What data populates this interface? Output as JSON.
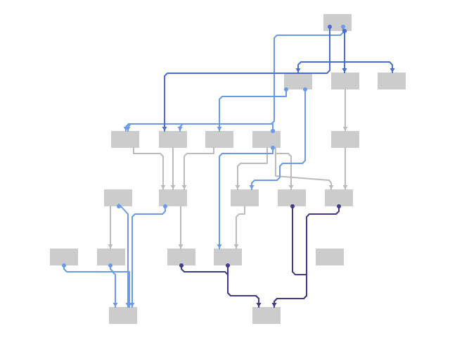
{
  "diagram": {
    "node_color": "#cccccc",
    "edge_colors": {
      "gray": "#bbbbbb",
      "blue": "#4a6fd4",
      "light_blue": "#6a9ae8",
      "dark_purple": "#3f3a8a"
    },
    "nodes": [
      "n_root",
      "n_a",
      "n_b",
      "n_c",
      "n_d",
      "n_e",
      "n_f",
      "n_g",
      "n_h",
      "n_i",
      "n_j",
      "n_k",
      "n_l",
      "n_m",
      "n_n",
      "n_o",
      "n_p",
      "n_q",
      "n_r",
      "n_s",
      "n_t"
    ],
    "edges": [
      {
        "from": "n_root",
        "to": "n_e",
        "color": "blue"
      },
      {
        "from": "n_root",
        "to": "n_a",
        "color": "blue"
      },
      {
        "from": "n_root",
        "to": "n_b",
        "color": "blue"
      },
      {
        "from": "n_root",
        "to": "n_c",
        "color": "blue"
      },
      {
        "from": "n_a",
        "to": "n_d",
        "color": "light_blue"
      },
      {
        "from": "n_a",
        "to": "n_m",
        "color": "light_blue"
      },
      {
        "from": "n_b",
        "to": "n_h",
        "color": "gray"
      },
      {
        "from": "n_d",
        "to": "n_i",
        "color": "light_blue"
      },
      {
        "from": "n_f",
        "to": "n_e",
        "color": "light_blue"
      },
      {
        "from": "n_d",
        "to": "n_f",
        "color": "light_blue"
      },
      {
        "from": "n_d",
        "to": "n_g",
        "color": "light_blue"
      },
      {
        "from": "n_d",
        "to": "n_l",
        "color": "gray"
      },
      {
        "from": "n_d",
        "to": "n_p",
        "color": "gray"
      },
      {
        "from": "n_d",
        "to": "n_m",
        "color": "gray"
      },
      {
        "from": "n_e",
        "to": "n_i",
        "color": "blue"
      },
      {
        "from": "n_e",
        "to": "n_j",
        "color": "gray"
      },
      {
        "from": "n_f",
        "to": "n_j",
        "color": "gray"
      },
      {
        "from": "n_g",
        "to": "n_j",
        "color": "gray"
      },
      {
        "from": "n_h",
        "to": "n_m",
        "color": "gray"
      },
      {
        "from": "n_i",
        "to": "n_o",
        "color": "gray"
      },
      {
        "from": "n_i",
        "to": "n_s",
        "color": "light_blue"
      },
      {
        "from": "n_j",
        "to": "n_s",
        "color": "light_blue"
      },
      {
        "from": "n_j",
        "to": "n_q",
        "color": "gray"
      },
      {
        "from": "n_k",
        "to": "n_p",
        "color": "gray"
      },
      {
        "from": "n_l",
        "to": "n_t",
        "color": "dark_purple"
      },
      {
        "from": "n_m",
        "to": "n_t",
        "color": "dark_purple"
      },
      {
        "from": "n_n",
        "to": "n_s",
        "color": "light_blue"
      },
      {
        "from": "n_o",
        "to": "n_s",
        "color": "light_blue"
      },
      {
        "from": "n_q",
        "to": "n_t",
        "color": "dark_purple"
      },
      {
        "from": "n_p",
        "to": "n_t",
        "color": "dark_purple"
      }
    ]
  }
}
